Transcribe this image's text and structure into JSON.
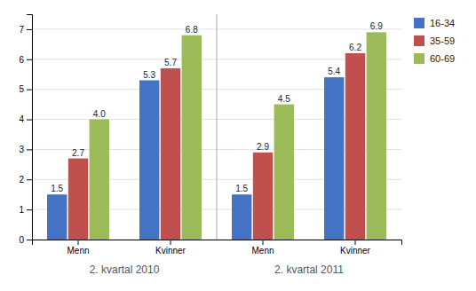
{
  "chart_data": {
    "type": "bar",
    "categories": [
      "Menn",
      "Kvinner",
      "Menn",
      "Kvinner"
    ],
    "annotations": [
      "2. kvartal 2010",
      "2. kvartal 2011"
    ],
    "series": [
      {
        "name": "16-34",
        "color": "#4472C4",
        "values": [
          1.5,
          5.3,
          1.5,
          5.4
        ]
      },
      {
        "name": "35-59",
        "color": "#C0504D",
        "values": [
          2.7,
          5.7,
          2.9,
          6.2
        ]
      },
      {
        "name": "60-69",
        "color": "#9BBB59",
        "values": [
          4.0,
          6.8,
          4.5,
          6.9
        ],
        "value_labels": [
          "4.0",
          "6.8",
          "4.5",
          "6.9"
        ]
      }
    ],
    "ylim": [
      0,
      7.5
    ],
    "yticks": [
      0,
      1,
      2,
      3,
      4,
      5,
      6,
      7
    ],
    "grid": true,
    "legend": "upper right",
    "data_labels": true
  }
}
